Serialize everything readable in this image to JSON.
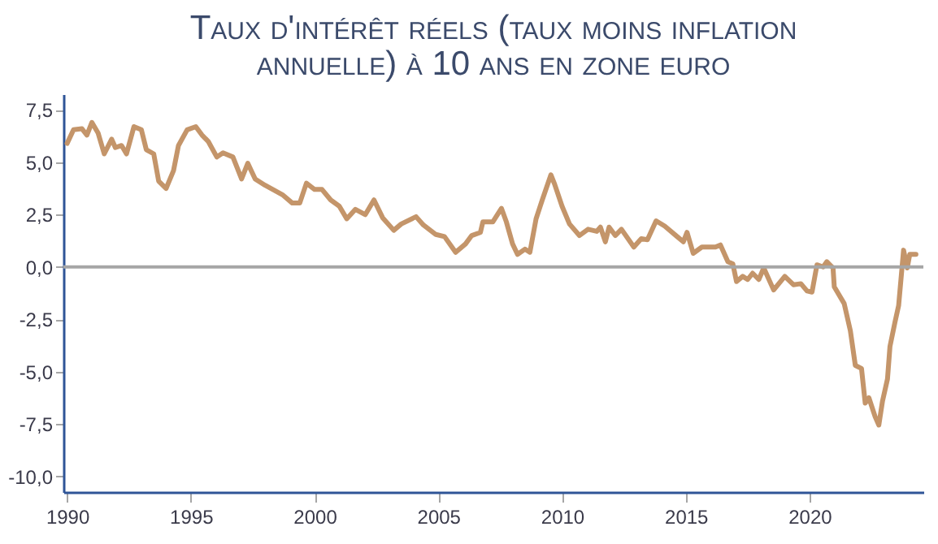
{
  "chart_data": {
    "type": "line",
    "title": "Taux d'intérêt réels (taux moins inflation\nannuelle) à 10 ans en zone euro",
    "x": [
      1990.0,
      1990.26,
      1990.6,
      1990.8,
      1991.0,
      1991.25,
      1991.5,
      1991.8,
      1991.95,
      1992.2,
      1992.4,
      1992.7,
      1993.0,
      1993.2,
      1993.5,
      1993.7,
      1994.0,
      1994.3,
      1994.5,
      1994.85,
      1995.2,
      1995.45,
      1995.7,
      1996.05,
      1996.3,
      1996.7,
      1997.05,
      1997.3,
      1997.6,
      1998.0,
      1998.7,
      1999.1,
      1999.4,
      1999.67,
      2000.0,
      2000.3,
      2000.65,
      2001.0,
      2001.3,
      2001.65,
      2002.05,
      2002.4,
      2002.75,
      2003.2,
      2003.5,
      2004.1,
      2004.4,
      2004.9,
      2005.25,
      2005.7,
      2006.1,
      2006.35,
      2006.7,
      2006.8,
      2007.2,
      2007.55,
      2007.75,
      2008.0,
      2008.2,
      2008.5,
      2008.7,
      2008.95,
      2009.2,
      2009.55,
      2009.7,
      2010.0,
      2010.3,
      2010.7,
      2011.05,
      2011.4,
      2011.55,
      2011.75,
      2011.9,
      2012.15,
      2012.4,
      2012.9,
      2013.2,
      2013.45,
      2013.8,
      2014.15,
      2014.65,
      2014.9,
      2015.05,
      2015.3,
      2015.65,
      2016.2,
      2016.4,
      2016.7,
      2016.9,
      2017.05,
      2017.3,
      2017.5,
      2017.7,
      2017.95,
      2018.15,
      2018.55,
      2019.0,
      2019.35,
      2019.65,
      2019.9,
      2020.1,
      2020.3,
      2020.55,
      2020.7,
      2020.95,
      2021.0,
      2021.4,
      2021.65,
      2021.85,
      2022.1,
      2022.25,
      2022.4,
      2022.65,
      2022.8,
      2022.95,
      2023.15,
      2023.25,
      2023.45,
      2023.6,
      2023.8,
      2023.95,
      2024.05,
      2024.3
    ],
    "series": [
      {
        "color": "#c4956a",
        "values": [
          5.9,
          6.55,
          6.6,
          6.3,
          6.9,
          6.4,
          5.4,
          6.1,
          5.7,
          5.8,
          5.4,
          6.7,
          6.55,
          5.6,
          5.4,
          4.1,
          3.75,
          4.6,
          5.8,
          6.55,
          6.7,
          6.3,
          6.0,
          5.25,
          5.45,
          5.25,
          4.2,
          4.95,
          4.2,
          3.9,
          3.45,
          3.05,
          3.05,
          4.0,
          3.7,
          3.7,
          3.2,
          2.9,
          2.3,
          2.75,
          2.5,
          3.2,
          2.35,
          1.75,
          2.05,
          2.4,
          2.0,
          1.55,
          1.45,
          0.7,
          1.1,
          1.5,
          1.65,
          2.15,
          2.15,
          2.8,
          2.15,
          1.1,
          0.6,
          0.85,
          0.7,
          2.3,
          3.2,
          4.4,
          3.95,
          2.9,
          2.05,
          1.5,
          1.8,
          1.7,
          1.9,
          1.2,
          1.9,
          1.5,
          1.8,
          0.95,
          1.35,
          1.3,
          2.2,
          1.95,
          1.45,
          1.2,
          1.65,
          0.65,
          0.95,
          0.95,
          1.05,
          0.25,
          0.15,
          -0.7,
          -0.45,
          -0.6,
          -0.3,
          -0.6,
          -0.05,
          -1.1,
          -0.45,
          -0.85,
          -0.8,
          -1.15,
          -1.2,
          0.1,
          0.0,
          0.25,
          -0.05,
          -0.95,
          -1.75,
          -3.05,
          -4.7,
          -4.85,
          -6.5,
          -6.25,
          -7.15,
          -7.55,
          -6.4,
          -5.35,
          -3.8,
          -2.65,
          -1.85,
          0.8,
          -0.05,
          0.6,
          0.6
        ]
      }
    ],
    "xlim": [
      1989.85,
      2024.6
    ],
    "xticks": [
      1990,
      1995,
      2000,
      2005,
      2010,
      2015,
      2020
    ],
    "ylim": [
      -10.75,
      8.25
    ],
    "yticks": [
      {
        "value": -10,
        "label": "-10,0"
      },
      {
        "value": -7.5,
        "label": "-7,5"
      },
      {
        "value": -5,
        "label": "-5,0"
      },
      {
        "value": -2.5,
        "label": "-2,5"
      },
      {
        "value": 0,
        "label": "0,0"
      },
      {
        "value": 2.5,
        "label": "2,5"
      },
      {
        "value": 5,
        "label": "5,0"
      },
      {
        "value": 7.5,
        "label": "7,5"
      }
    ],
    "ref_lines": [
      {
        "axis": "y",
        "value": 0,
        "color": "#a6a6a6"
      }
    ],
    "grid": false
  }
}
